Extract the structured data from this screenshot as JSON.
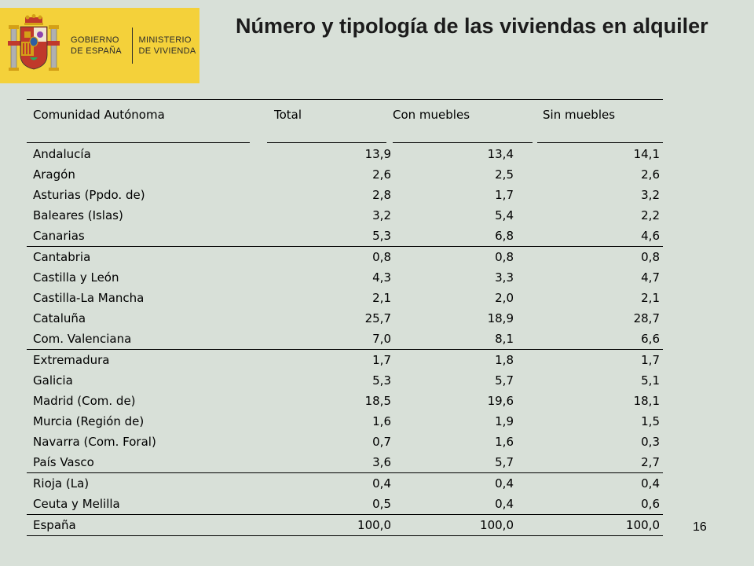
{
  "logo": {
    "line1a": "GOBIERNO",
    "line1b": "DE ESPAÑA",
    "line2a": "MINISTERIO",
    "line2b": "DE VIVIENDA",
    "background": "#f4d13a"
  },
  "title": "Número y tipología de las viviendas en alquiler",
  "table": {
    "headers": [
      "Comunidad Autónoma",
      "Total",
      "Con muebles",
      "Sin muebles"
    ],
    "groups": [
      [
        [
          "Andalucía",
          "13,9",
          "13,4",
          "14,1"
        ],
        [
          "Aragón",
          "2,6",
          "2,5",
          "2,6"
        ],
        [
          "Asturias (Ppdo. de)",
          "2,8",
          "1,7",
          "3,2"
        ],
        [
          "Baleares (Islas)",
          "3,2",
          "5,4",
          "2,2"
        ],
        [
          "Canarias",
          "5,3",
          "6,8",
          "4,6"
        ]
      ],
      [
        [
          "Cantabria",
          "0,8",
          "0,8",
          "0,8"
        ],
        [
          "Castilla y León",
          "4,3",
          "3,3",
          "4,7"
        ],
        [
          "Castilla-La Mancha",
          "2,1",
          "2,0",
          "2,1"
        ],
        [
          "Cataluña",
          "25,7",
          "18,9",
          "28,7"
        ],
        [
          "Com. Valenciana",
          "7,0",
          "8,1",
          "6,6"
        ]
      ],
      [
        [
          "Extremadura",
          "1,7",
          "1,8",
          "1,7"
        ],
        [
          "Galicia",
          "5,3",
          "5,7",
          "5,1"
        ],
        [
          "Madrid (Com. de)",
          "18,5",
          "19,6",
          "18,1"
        ],
        [
          "Murcia (Región de)",
          "1,6",
          "1,9",
          "1,5"
        ],
        [
          "Navarra (Com. Foral)",
          "0,7",
          "1,6",
          "0,3"
        ],
        [
          "País Vasco",
          "3,6",
          "5,7",
          "2,7"
        ]
      ],
      [
        [
          "Rioja (La)",
          "0,4",
          "0,4",
          "0,4"
        ],
        [
          "Ceuta y Melilla",
          "0,5",
          "0,4",
          "0,6"
        ]
      ],
      [
        [
          "España",
          "100,0",
          "100,0",
          "100,0"
        ]
      ]
    ]
  },
  "page_number": "16"
}
